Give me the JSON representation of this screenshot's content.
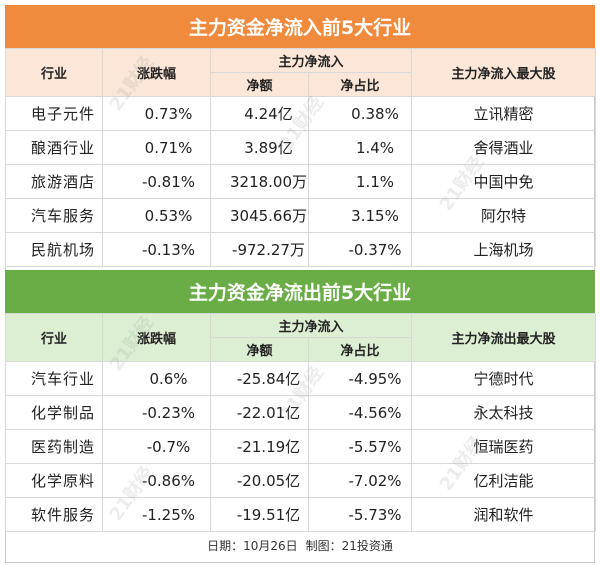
{
  "inflow": {
    "title": "主力资金净流入前5大行业",
    "headers": {
      "industry": "行业",
      "change": "涨跌幅",
      "main_net": "主力净流入",
      "net_amount": "净额",
      "net_ratio": "净占比",
      "top_stock": "主力净流入最大股"
    },
    "rows": [
      {
        "industry": "电子元件",
        "change": "0.73%",
        "amount": "4.24亿",
        "ratio": "0.38%",
        "stock": "立讯精密"
      },
      {
        "industry": "酿酒行业",
        "change": "0.71%",
        "amount": "3.89亿",
        "ratio": "1.4%",
        "stock": "舍得酒业"
      },
      {
        "industry": "旅游酒店",
        "change": "-0.81%",
        "amount": "3218.00万",
        "ratio": "1.1%",
        "stock": "中国中免"
      },
      {
        "industry": "汽车服务",
        "change": "0.53%",
        "amount": "3045.66万",
        "ratio": "3.15%",
        "stock": "阿尔特"
      },
      {
        "industry": "民航机场",
        "change": "-0.13%",
        "amount": "-972.27万",
        "ratio": "-0.37%",
        "stock": "上海机场"
      }
    ]
  },
  "outflow": {
    "title": "主力资金净流出前5大行业",
    "headers": {
      "industry": "行业",
      "change": "涨跌幅",
      "main_net": "主力净流入",
      "net_amount": "净额",
      "net_ratio": "净占比",
      "top_stock": "主力净流出最大股"
    },
    "rows": [
      {
        "industry": "汽车行业",
        "change": "0.6%",
        "amount": "-25.84亿",
        "ratio": "-4.95%",
        "stock": "宁德时代"
      },
      {
        "industry": "化学制品",
        "change": "-0.23%",
        "amount": "-22.01亿",
        "ratio": "-4.56%",
        "stock": "永太科技"
      },
      {
        "industry": "医药制造",
        "change": "-0.7%",
        "amount": "-21.19亿",
        "ratio": "-5.57%",
        "stock": "恒瑞医药"
      },
      {
        "industry": "化学原料",
        "change": "-0.86%",
        "amount": "-20.05亿",
        "ratio": "-7.02%",
        "stock": "亿利洁能"
      },
      {
        "industry": "软件服务",
        "change": "-1.25%",
        "amount": "-19.51亿",
        "ratio": "-5.73%",
        "stock": "润和软件"
      }
    ]
  },
  "footer": {
    "date": "日期：10月26日",
    "producer": "制图：21投资通"
  },
  "watermark": "21财经",
  "colors": {
    "inflow_banner": "#f08a3c",
    "inflow_header": "#fbe6d7",
    "outflow_banner": "#6aad46",
    "outflow_header": "#dcefd3"
  }
}
